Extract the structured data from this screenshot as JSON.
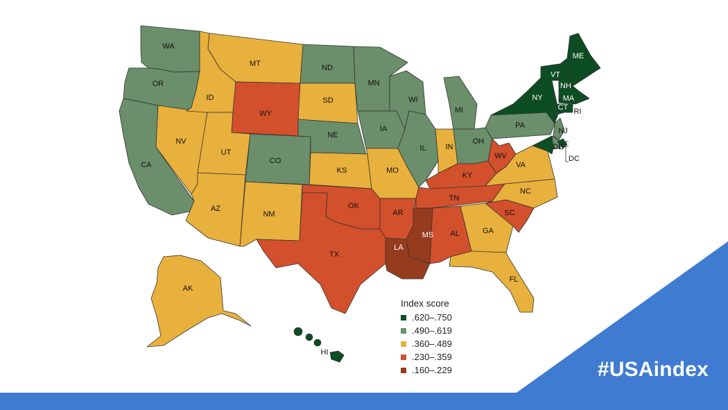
{
  "legend": {
    "title": "Index score",
    "items": [
      {
        "label": ".620–.750",
        "color": "#0d4d24"
      },
      {
        "label": ".490–.619",
        "color": "#6a8f6a"
      },
      {
        "label": ".360–.489",
        "color": "#e8b03c"
      },
      {
        "label": ".230–.359",
        "color": "#d2502c"
      },
      {
        "label": ".160–.229",
        "color": "#963c1e"
      }
    ]
  },
  "hashtag": "#USAindex",
  "colors": {
    "banner": "#3f7bd1",
    "outline": "#333333"
  },
  "states": [
    {
      "abbr": "WA",
      "bin": 1
    },
    {
      "abbr": "OR",
      "bin": 1
    },
    {
      "abbr": "CA",
      "bin": 1
    },
    {
      "abbr": "NV",
      "bin": 2
    },
    {
      "abbr": "ID",
      "bin": 2
    },
    {
      "abbr": "MT",
      "bin": 2
    },
    {
      "abbr": "WY",
      "bin": 3
    },
    {
      "abbr": "UT",
      "bin": 2
    },
    {
      "abbr": "AZ",
      "bin": 2
    },
    {
      "abbr": "CO",
      "bin": 1
    },
    {
      "abbr": "NM",
      "bin": 2
    },
    {
      "abbr": "ND",
      "bin": 1
    },
    {
      "abbr": "SD",
      "bin": 2
    },
    {
      "abbr": "NE",
      "bin": 1
    },
    {
      "abbr": "KS",
      "bin": 2
    },
    {
      "abbr": "OK",
      "bin": 3
    },
    {
      "abbr": "TX",
      "bin": 3
    },
    {
      "abbr": "MN",
      "bin": 1
    },
    {
      "abbr": "IA",
      "bin": 1
    },
    {
      "abbr": "MO",
      "bin": 2
    },
    {
      "abbr": "AR",
      "bin": 3
    },
    {
      "abbr": "LA",
      "bin": 4
    },
    {
      "abbr": "WI",
      "bin": 1
    },
    {
      "abbr": "IL",
      "bin": 1
    },
    {
      "abbr": "MI",
      "bin": 1
    },
    {
      "abbr": "IN",
      "bin": 2
    },
    {
      "abbr": "OH",
      "bin": 1
    },
    {
      "abbr": "KY",
      "bin": 3
    },
    {
      "abbr": "TN",
      "bin": 3
    },
    {
      "abbr": "MS",
      "bin": 4
    },
    {
      "abbr": "AL",
      "bin": 3
    },
    {
      "abbr": "GA",
      "bin": 2
    },
    {
      "abbr": "FL",
      "bin": 2
    },
    {
      "abbr": "SC",
      "bin": 3
    },
    {
      "abbr": "NC",
      "bin": 2
    },
    {
      "abbr": "VA",
      "bin": 2
    },
    {
      "abbr": "WV",
      "bin": 3
    },
    {
      "abbr": "PA",
      "bin": 1
    },
    {
      "abbr": "NY",
      "bin": 0
    },
    {
      "abbr": "VT",
      "bin": 0
    },
    {
      "abbr": "NH",
      "bin": 0
    },
    {
      "abbr": "ME",
      "bin": 0
    },
    {
      "abbr": "MA",
      "bin": 0
    },
    {
      "abbr": "CT",
      "bin": 0
    },
    {
      "abbr": "RI",
      "bin": 0
    },
    {
      "abbr": "NJ",
      "bin": 1
    },
    {
      "abbr": "DE",
      "bin": 1
    },
    {
      "abbr": "MD",
      "bin": 0
    },
    {
      "abbr": "DC",
      "bin": 0
    },
    {
      "abbr": "AK",
      "bin": 2
    },
    {
      "abbr": "HI",
      "bin": 0
    }
  ]
}
